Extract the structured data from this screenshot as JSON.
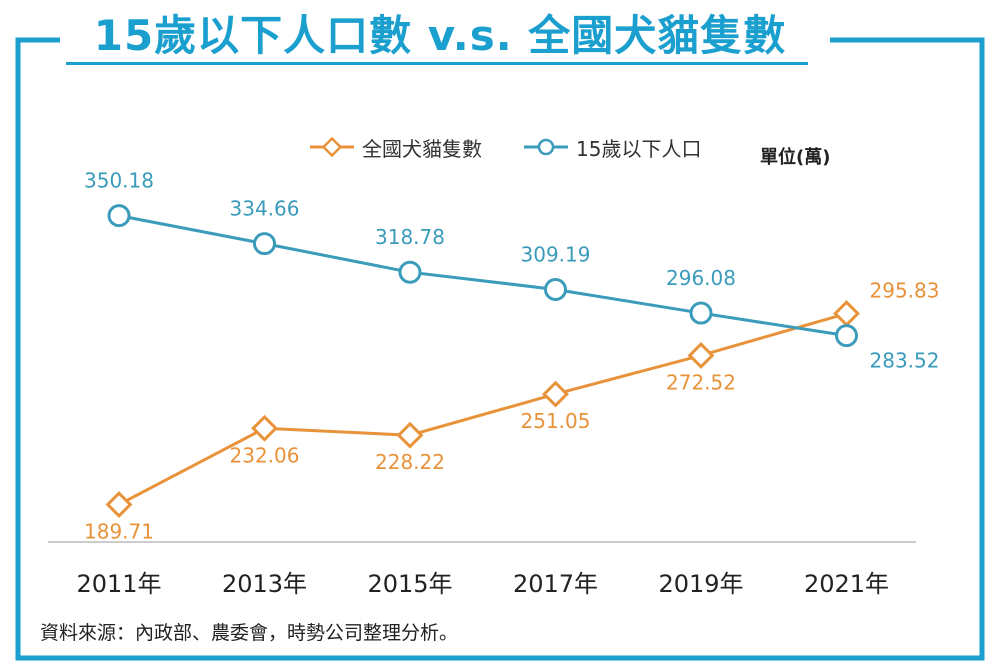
{
  "header": {
    "title": "15歲以下人口數 v.s. 全國犬貓隻數"
  },
  "legend": {
    "pets_label": "全國犬貓隻數",
    "children_label": "15歲以下人口",
    "unit": "單位(萬)"
  },
  "footer": {
    "source": "資料來源：內政部、農委會，時勢公司整理分析。"
  },
  "colors": {
    "frame": "#1a9fcf",
    "children": "#3a9bbb",
    "pets": "#e8923a",
    "axis": "#cccccc"
  },
  "chart_data": {
    "type": "line",
    "categories": [
      "2011年",
      "2013年",
      "2015年",
      "2017年",
      "2019年",
      "2021年"
    ],
    "series": [
      {
        "name": "全國犬貓隻數",
        "marker": "diamond",
        "values": [
          189.71,
          232.06,
          228.22,
          251.05,
          272.52,
          295.83
        ]
      },
      {
        "name": "15歲以下人口",
        "marker": "circle",
        "values": [
          350.18,
          334.66,
          318.78,
          309.19,
          296.08,
          283.52
        ]
      }
    ],
    "value_labels": {
      "全國犬貓隻數": [
        "189.71",
        "232.06",
        "228.22",
        "251.05",
        "272.52",
        "295.83"
      ],
      "15歲以下人口": [
        "350.18",
        "334.66",
        "318.78",
        "309.19",
        "296.08",
        "283.52"
      ]
    },
    "ylim": [
      170,
      370
    ],
    "grid": false,
    "legend_position": "top"
  }
}
